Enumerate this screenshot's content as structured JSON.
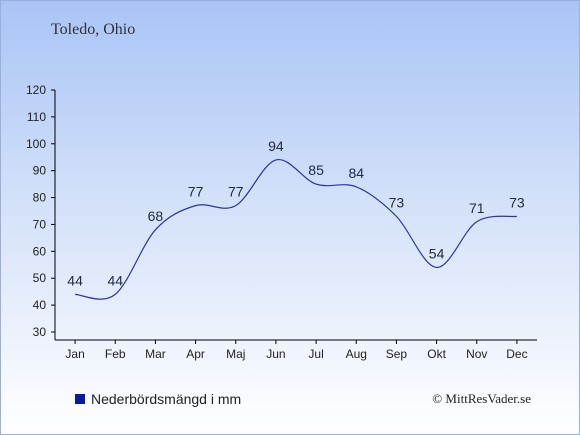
{
  "chart_data": {
    "type": "line",
    "title": "Toledo, Ohio",
    "categories": [
      "Jan",
      "Feb",
      "Mar",
      "Apr",
      "Maj",
      "Jun",
      "Jul",
      "Aug",
      "Sep",
      "Okt",
      "Nov",
      "Dec"
    ],
    "series": [
      {
        "name": "Nederbördsmängd i mm",
        "values": [
          44,
          44,
          68,
          77,
          77,
          94,
          85,
          84,
          73,
          54,
          71,
          73
        ],
        "color": "#2b34a8"
      }
    ],
    "ylim": [
      30,
      120
    ],
    "yticks": [
      30,
      40,
      50,
      60,
      70,
      80,
      90,
      100,
      110,
      120
    ],
    "grid": false,
    "legend_position": "bottom-left",
    "legend_swatch_color": "#0a1aa0"
  },
  "credit": "© MittResVader.se"
}
